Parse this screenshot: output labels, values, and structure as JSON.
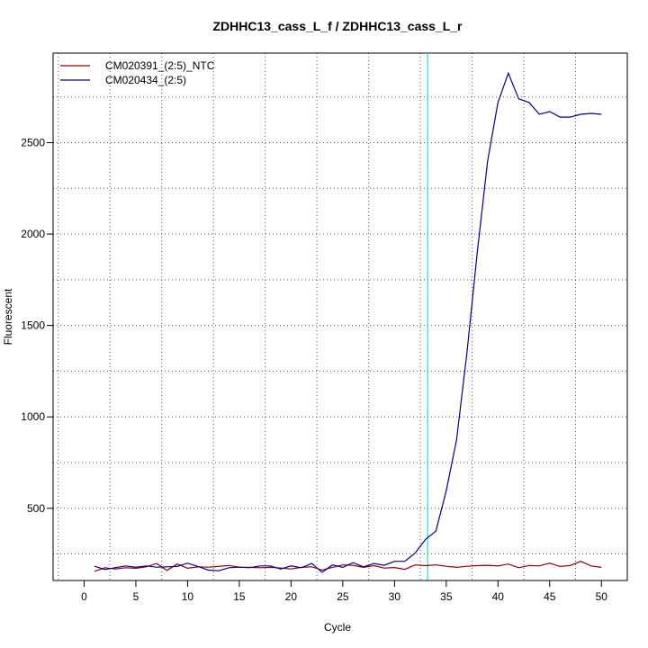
{
  "chart_data": {
    "type": "line",
    "title": "ZDHHC13_cass_L_f / ZDHHC13_cass_L_r",
    "xlabel": "Cycle",
    "ylabel": "Fluorescent",
    "xlim": [
      -3,
      52.5
    ],
    "ylim": [
      105,
      2990
    ],
    "xticks": [
      0,
      5,
      10,
      15,
      20,
      25,
      30,
      35,
      40,
      45,
      50
    ],
    "yticks": [
      500,
      1000,
      1500,
      2000,
      2500
    ],
    "grid": true,
    "legend_position": "top-left",
    "threshold_cycle": 33.2,
    "threshold_color": "#00e5ee",
    "x": [
      1,
      2,
      3,
      4,
      5,
      6,
      7,
      8,
      9,
      10,
      11,
      12,
      13,
      14,
      15,
      16,
      17,
      18,
      19,
      20,
      21,
      22,
      23,
      24,
      25,
      26,
      27,
      28,
      29,
      30,
      31,
      32,
      33,
      34,
      35,
      36,
      37,
      38,
      39,
      40,
      41,
      42,
      43,
      44,
      45,
      46,
      47,
      48,
      49,
      50
    ],
    "series": [
      {
        "name": "CM020391_(2:5)_NTC",
        "color": "#8b0000",
        "values": [
          155,
          175,
          168,
          175,
          172,
          180,
          198,
          160,
          195,
          172,
          180,
          178,
          182,
          187,
          178,
          177,
          175,
          177,
          173,
          168,
          177,
          180,
          162,
          177,
          190,
          188,
          177,
          186,
          173,
          176,
          166,
          190,
          186,
          190,
          183,
          177,
          183,
          186,
          188,
          185,
          195,
          175,
          187,
          185,
          200,
          182,
          187,
          210,
          185,
          177
        ]
      },
      {
        "name": "CM020434_(2:5)",
        "color": "#00008b",
        "values": [
          183,
          165,
          175,
          185,
          178,
          185,
          178,
          180,
          182,
          200,
          182,
          162,
          158,
          175,
          178,
          175,
          185,
          185,
          168,
          185,
          175,
          198,
          150,
          190,
          177,
          203,
          180,
          198,
          188,
          210,
          210,
          255,
          330,
          375,
          595,
          875,
          1350,
          1900,
          2400,
          2720,
          2880,
          2740,
          2720,
          2655,
          2670,
          2640,
          2640,
          2655,
          2660,
          2655
        ]
      }
    ]
  }
}
